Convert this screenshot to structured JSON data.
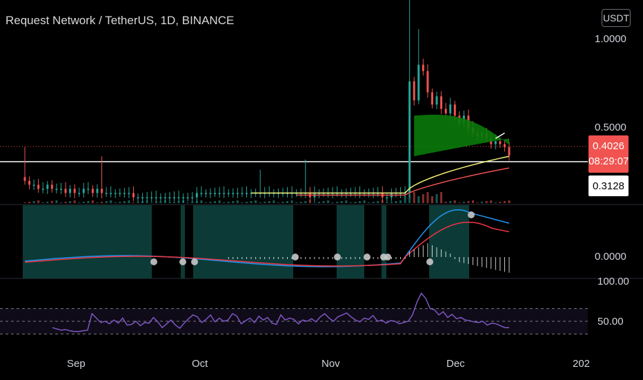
{
  "header": {
    "title": "Request Network / TetherUS, 1D, BINANCE",
    "currency": "USDT"
  },
  "price_axis": {
    "ticks": [
      "1.0000",
      "0.5000"
    ],
    "last_price": "0.4026",
    "countdown": "08:29:07",
    "horizontal_level": "0.3128"
  },
  "macd_axis": {
    "ticks": [
      "0.0000"
    ]
  },
  "rsi_axis": {
    "ticks": [
      "100.00",
      "50.00"
    ]
  },
  "time_axis": {
    "labels": [
      "Sep",
      "Oct",
      "Nov",
      "Dec",
      "202"
    ]
  },
  "colors": {
    "up": "#26a69a",
    "down": "#ef5350",
    "background": "#000000",
    "cloud": "#0a7a0a",
    "macd": "#2196f3",
    "signal": "#f23645",
    "rsi": "#7e57c2",
    "yellow_ma": "#f5f07a",
    "macd_fill": "#0c3b37"
  },
  "chart_data": [
    {
      "type": "candlestick",
      "title": "Request Network / TetherUS, 1D, BINANCE",
      "x_labels": [
        "Sep",
        "Oct",
        "Nov",
        "Dec"
      ],
      "y_ticks": [
        1.0,
        0.5
      ],
      "last_price": 0.4026,
      "horizontal_level": 0.3128,
      "approx_closes": [
        0.33,
        0.32,
        0.32,
        0.31,
        0.31,
        0.32,
        0.31,
        0.31,
        0.31,
        0.3,
        0.31,
        0.3,
        0.3,
        0.31,
        0.31,
        0.3,
        0.31,
        0.3,
        0.3,
        0.3,
        0.3,
        0.3,
        0.3,
        0.3,
        0.29,
        0.29,
        0.29,
        0.29,
        0.29,
        0.29,
        0.29,
        0.29,
        0.29,
        0.29,
        0.29,
        0.29,
        0.29,
        0.29,
        0.3,
        0.3,
        0.3,
        0.3,
        0.3,
        0.3,
        0.3,
        0.3,
        0.3,
        0.3,
        0.3,
        0.3,
        0.3,
        0.3,
        0.3,
        0.3,
        0.3,
        0.3,
        0.3,
        0.3,
        0.3,
        0.3,
        0.3,
        0.3,
        0.3,
        0.29,
        0.3,
        0.3,
        0.3,
        0.3,
        0.3,
        0.3,
        0.3,
        0.3,
        0.3,
        0.3,
        0.3,
        0.3,
        0.3,
        0.3,
        0.3,
        0.29,
        0.29,
        0.3,
        0.3,
        0.3,
        0.3,
        0.72,
        0.62,
        0.82,
        0.78,
        0.66,
        0.6,
        0.64,
        0.58,
        0.56,
        0.6,
        0.55,
        0.52,
        0.55,
        0.5,
        0.48,
        0.47,
        0.48,
        0.46,
        0.44,
        0.45,
        0.44,
        0.43,
        0.4026
      ]
    },
    {
      "type": "line",
      "name": "MACD",
      "y_ticks": [
        0.0
      ]
    },
    {
      "type": "line",
      "name": "RSI",
      "y_ticks": [
        100.0,
        50.0
      ],
      "values": [
        40,
        38,
        36,
        37,
        35,
        34,
        34,
        35,
        36,
        62,
        55,
        48,
        50,
        46,
        52,
        47,
        55,
        44,
        45,
        50,
        43,
        48,
        47,
        56,
        49,
        40,
        46,
        52,
        44,
        39,
        47,
        54,
        60,
        57,
        48,
        53,
        60,
        49,
        55,
        50,
        52,
        62,
        58,
        46,
        51,
        55,
        48,
        58,
        52,
        56,
        47,
        45,
        60,
        52,
        55,
        53,
        46,
        52,
        50,
        54,
        49,
        57,
        62,
        55,
        50,
        57,
        60,
        63,
        57,
        52,
        49,
        55,
        53,
        59,
        50,
        52,
        47,
        51,
        50,
        46,
        48,
        50,
        60,
        80,
        94,
        86,
        70,
        68,
        60,
        65,
        56,
        61,
        54,
        56,
        52,
        51,
        49,
        48,
        50,
        44,
        47,
        46,
        43,
        40,
        40
      ]
    }
  ]
}
